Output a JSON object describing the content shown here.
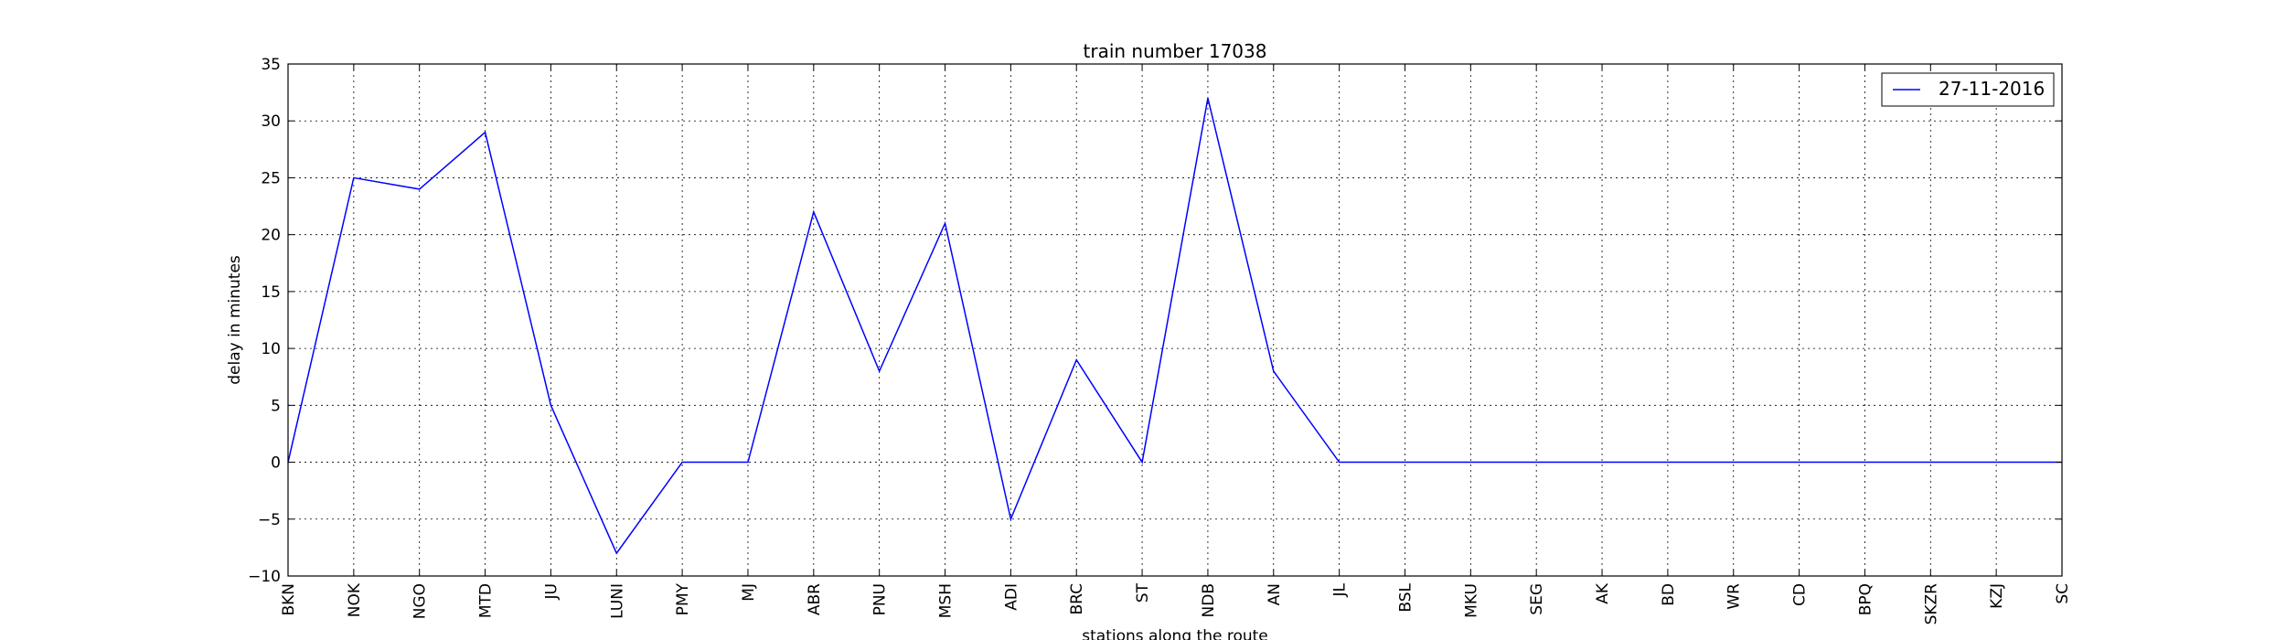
{
  "chart_data": {
    "type": "line",
    "title": "train number 17038",
    "xlabel": "stations along the route",
    "ylabel": "delay in minutes",
    "categories": [
      "BKN",
      "NOK",
      "NGO",
      "MTD",
      "JU",
      "LUNI",
      "PMY",
      "MJ",
      "ABR",
      "PNU",
      "MSH",
      "ADI",
      "BRC",
      "ST",
      "NDB",
      "AN",
      "JL",
      "BSL",
      "MKU",
      "SEG",
      "AK",
      "BD",
      "WR",
      "CD",
      "BPQ",
      "SKZR",
      "KZJ",
      "SC"
    ],
    "series": [
      {
        "name": "27-11-2016",
        "color": "#0000ff",
        "values": [
          0,
          25,
          24,
          29,
          5,
          -8,
          0,
          0,
          22,
          8,
          21,
          -5,
          9,
          0,
          32,
          8,
          0,
          0,
          0,
          0,
          0,
          0,
          0,
          0,
          0,
          0,
          0,
          0
        ]
      }
    ],
    "ylim": [
      -10,
      35
    ],
    "yticks": [
      -10,
      -5,
      0,
      5,
      10,
      15,
      20,
      25,
      30,
      35
    ],
    "grid": true,
    "legend_position": "top-right"
  }
}
